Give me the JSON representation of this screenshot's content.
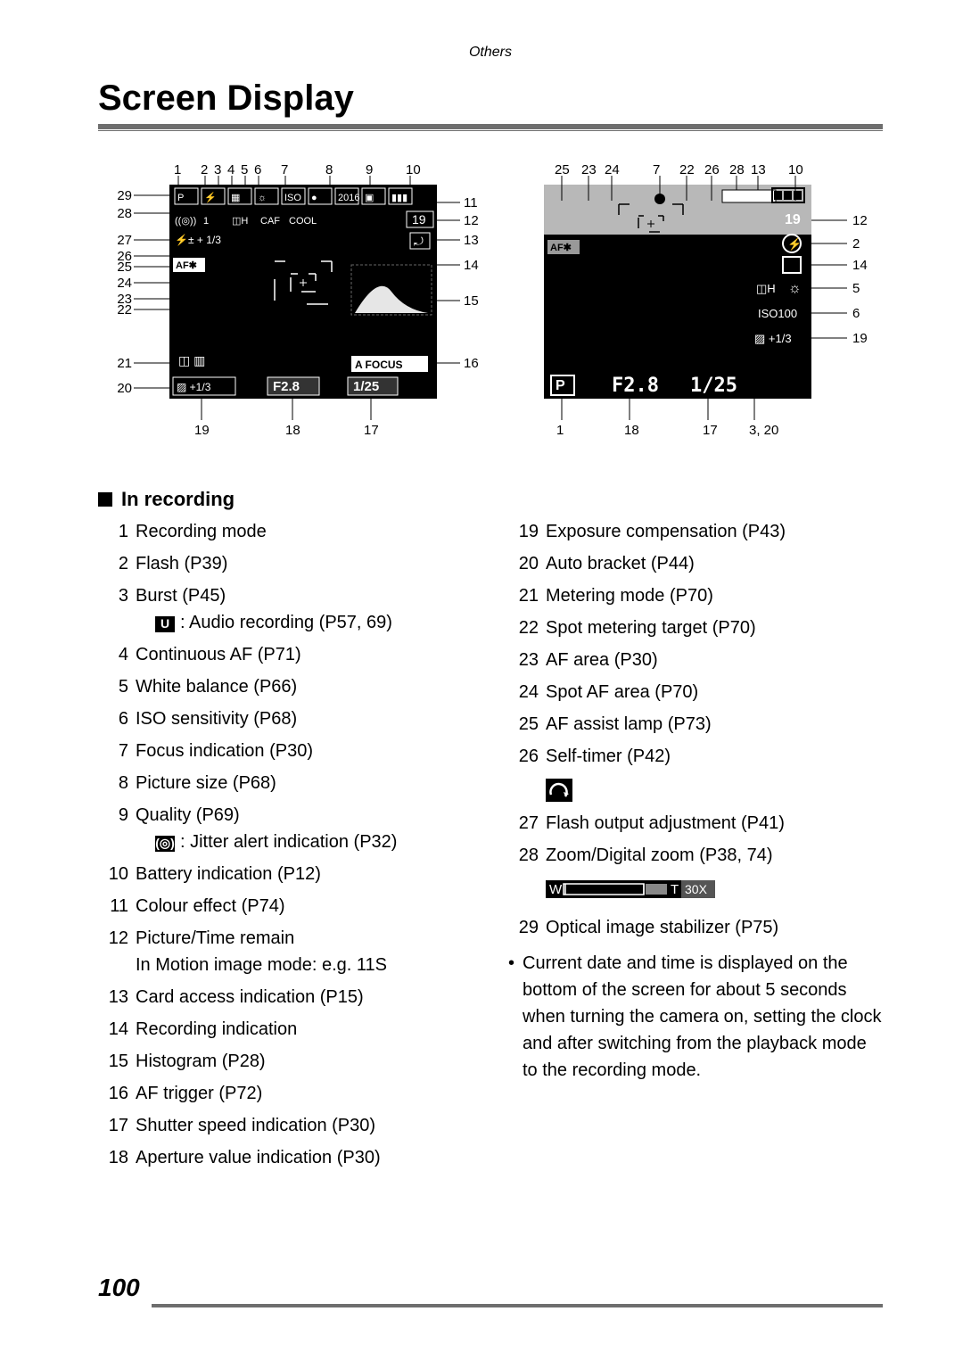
{
  "header": {
    "section_label": "Others",
    "title": "Screen Display",
    "page_number": "100"
  },
  "figures": {
    "left": {
      "top_labels": [
        "1",
        "2",
        "3",
        "4",
        "5",
        "6",
        "7",
        "8",
        "9",
        "10"
      ],
      "left_labels": [
        "29",
        "28",
        "27",
        "26",
        "25",
        "24",
        "23",
        "22",
        "21",
        "20"
      ],
      "right_labels": [
        "11",
        "12",
        "13",
        "14",
        "15",
        "16"
      ],
      "bottom_labels": [
        "19",
        "18",
        "17"
      ],
      "screen": {
        "bg": "#000000",
        "text": "#ffffff",
        "accent_green": "#4aa33a",
        "row1_tokens": [
          "P",
          "⚡",
          "▦",
          "☼",
          "ISO",
          "●",
          "2016",
          "▣",
          "▮▮▮"
        ],
        "row1_right": "19",
        "row2_tokens": [
          "((◎))",
          "1",
          "◫H",
          "CAF",
          "COOL"
        ],
        "row3_tokens": [
          "⚡±",
          "+",
          "1/3"
        ],
        "row3_right": "⤾",
        "af_star": "AF✱",
        "bottom_tokens": [
          "◫",
          "▥"
        ],
        "af_focus": "A FOCUS",
        "exp_comp": "▨ +1/3",
        "aperture": "F2.8",
        "shutter": "1/25"
      }
    },
    "right": {
      "top_labels": [
        "25",
        "23",
        "24",
        "7",
        "22",
        "26",
        "28",
        "13",
        "10"
      ],
      "right_labels": [
        "12",
        "2",
        "14",
        "5",
        "6",
        "19"
      ],
      "bottom_labels": [
        "1",
        "18",
        "17",
        "3, 20"
      ],
      "screen": {
        "bg": "#000000",
        "text": "#ffffff",
        "accent_green": "#4aa33a",
        "top_right_batt": "▮▮▮",
        "right_tokens": [
          "19",
          "⚡",
          "⤾",
          "◫H",
          "☼",
          "ISO100",
          "▨ +1/3"
        ],
        "af_star": "AF✱",
        "p": "P",
        "aperture": "F2.8",
        "shutter": "1/25"
      }
    }
  },
  "section_heading": "In recording",
  "list_left": [
    {
      "n": "1",
      "t": "Recording mode"
    },
    {
      "n": "2",
      "t": "Flash (P39)"
    },
    {
      "n": "3",
      "t": "Burst (P45)",
      "sub_icon": "U",
      "sub": "Audio recording (P57, 69)"
    },
    {
      "n": "4",
      "t": "Continuous AF (P71)"
    },
    {
      "n": "5",
      "t": "White balance (P66)"
    },
    {
      "n": "6",
      "t": "ISO sensitivity (P68)"
    },
    {
      "n": "7",
      "t": "Focus indication (P30)"
    },
    {
      "n": "8",
      "t": "Picture size (P68)"
    },
    {
      "n": "9",
      "t": "Quality (P69)",
      "sub_icon": "((◎))",
      "sub": "Jitter alert indication (P32)"
    },
    {
      "n": "10",
      "t": "Battery indication (P12)"
    },
    {
      "n": "11",
      "t": "Colour effect (P74)"
    },
    {
      "n": "12",
      "t": "Picture/Time remain",
      "sub2": "In Motion image mode:  e.g. 11S"
    },
    {
      "n": "13",
      "t": "Card access indication (P15)"
    },
    {
      "n": "14",
      "t": "Recording indication"
    },
    {
      "n": "15",
      "t": "Histogram (P28)"
    },
    {
      "n": "16",
      "t": "AF trigger (P72)"
    },
    {
      "n": "17",
      "t": "Shutter speed indication (P30)"
    },
    {
      "n": "18",
      "t": "Aperture value indication (P30)"
    }
  ],
  "list_right": [
    {
      "n": "19",
      "t": "Exposure compensation (P43)"
    },
    {
      "n": "20",
      "t": "Auto bracket (P44)"
    },
    {
      "n": "21",
      "t": "Metering mode (P70)"
    },
    {
      "n": "22",
      "t": "Spot metering target (P70)"
    },
    {
      "n": "23",
      "t": "AF area (P30)"
    },
    {
      "n": "24",
      "t": "Spot AF area (P70)"
    },
    {
      "n": "25",
      "t": "AF assist lamp (P73)"
    },
    {
      "n": "26",
      "t": "Self-timer (P42)",
      "timer": true
    },
    {
      "n": "27",
      "t": "Flash output adjustment (P41)"
    },
    {
      "n": "28",
      "t": "Zoom/Digital zoom (P38, 74)",
      "zoom": true
    },
    {
      "n": "29",
      "t": "Optical image stabilizer (P75)"
    }
  ],
  "zoom_bar": {
    "left_label": "W",
    "right_label": "T",
    "zoom_text": "30X",
    "bg": "#000",
    "fg": "#fff"
  },
  "note": "Current date and time is displayed on the bottom of the screen for about 5 seconds when turning the camera on, setting the clock and after switching from the playback mode to the recording mode.",
  "colors": {
    "page_bg": "#ffffff",
    "text": "#000000",
    "rule": "#6e6e6e"
  }
}
